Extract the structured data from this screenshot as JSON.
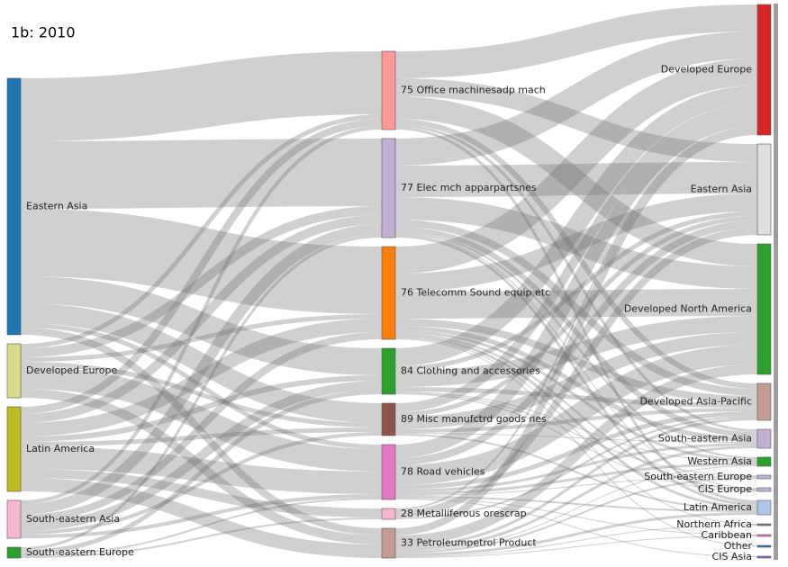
{
  "chart_data": {
    "type": "sankey",
    "title": "1b: 2010",
    "columns": [
      [
        {
          "name": "Eastern Asia",
          "color": "#1f77b4",
          "flows": [
            {
              "to": "75 Office machinesadp mach",
              "value": 70
            },
            {
              "to": "77 Elec mch apparpartsnes",
              "value": 75
            },
            {
              "to": "76 Telecomm Sound equip etc",
              "value": 75
            },
            {
              "to": "84 Clothing and accessories",
              "value": 30
            },
            {
              "to": "89 Misc manufctrd goods nes",
              "value": 22
            },
            {
              "to": "78 Road vehicles",
              "value": 5
            },
            {
              "to": "33 Petroleumpetrol Product",
              "value": 8
            }
          ]
        },
        {
          "name": "Developed Europe",
          "color": "#dbdb8d",
          "flows": [
            {
              "to": "75 Office machinesadp mach",
              "value": 5
            },
            {
              "to": "77 Elec mch apparpartsnes",
              "value": 10
            },
            {
              "to": "76 Telecomm Sound equip etc",
              "value": 5
            },
            {
              "to": "89 Misc manufctrd goods nes",
              "value": 5
            },
            {
              "to": "78 Road vehicles",
              "value": 25
            },
            {
              "to": "33 Petroleumpetrol Product",
              "value": 10
            }
          ]
        },
        {
          "name": "Latin America",
          "color": "#bcbd22",
          "flows": [
            {
              "to": "75 Office machinesadp mach",
              "value": 8
            },
            {
              "to": "77 Elec mch apparpartsnes",
              "value": 10
            },
            {
              "to": "76 Telecomm Sound equip etc",
              "value": 15
            },
            {
              "to": "84 Clothing and accessories",
              "value": 6
            },
            {
              "to": "89 Misc manufctrd goods nes",
              "value": 5
            },
            {
              "to": "78 Road vehicles",
              "value": 25
            },
            {
              "to": "28 Metalliferous orescrap",
              "value": 10
            },
            {
              "to": "33 Petroleumpetrol Product",
              "value": 15
            }
          ]
        },
        {
          "name": "South-eastern Asia",
          "color": "#f7b6d2",
          "flows": [
            {
              "to": "75 Office machinesadp mach",
              "value": 4
            },
            {
              "to": "77 Elec mch apparpartsnes",
              "value": 12
            },
            {
              "to": "76 Telecomm Sound equip etc",
              "value": 8
            },
            {
              "to": "84 Clothing and accessories",
              "value": 10
            },
            {
              "to": "89 Misc manufctrd goods nes",
              "value": 4
            },
            {
              "to": "78 Road vehicles",
              "value": 4
            }
          ]
        },
        {
          "name": "South-eastern Europe",
          "color": "#2ca02c",
          "flows": [
            {
              "to": "77 Elec mch apparpartsnes",
              "value": 3
            },
            {
              "to": "84 Clothing and accessories",
              "value": 5
            },
            {
              "to": "78 Road vehicles",
              "value": 2
            },
            {
              "to": "28 Metalliferous orescrap",
              "value": 2
            }
          ]
        }
      ],
      [
        {
          "name": "75 Office machinesadp mach",
          "color": "#ff9896",
          "flows": [
            {
              "to": "Developed Europe",
              "value": 30
            },
            {
              "to": "Eastern Asia",
              "value": 20
            },
            {
              "to": "Developed North America",
              "value": 25
            },
            {
              "to": "Developed Asia-Pacific",
              "value": 6
            },
            {
              "to": "South-eastern Asia",
              "value": 3
            },
            {
              "to": "Latin America",
              "value": 3
            }
          ]
        },
        {
          "name": "77 Elec mch apparpartsnes",
          "color": "#c5b0d5",
          "flows": [
            {
              "to": "Developed Europe",
              "value": 30
            },
            {
              "to": "Eastern Asia",
              "value": 35
            },
            {
              "to": "Developed North America",
              "value": 25
            },
            {
              "to": "Developed Asia-Pacific",
              "value": 8
            },
            {
              "to": "South-eastern Asia",
              "value": 6
            },
            {
              "to": "Western Asia",
              "value": 2
            },
            {
              "to": "CIS Europe",
              "value": 1
            },
            {
              "to": "Latin America",
              "value": 3
            }
          ]
        },
        {
          "name": "76 Telecomm Sound equip etc",
          "color": "#ff7f0e",
          "flows": [
            {
              "to": "Developed Europe",
              "value": 30
            },
            {
              "to": "Eastern Asia",
              "value": 20
            },
            {
              "to": "Developed North America",
              "value": 30
            },
            {
              "to": "Developed Asia-Pacific",
              "value": 8
            },
            {
              "to": "South-eastern Asia",
              "value": 5
            },
            {
              "to": "Western Asia",
              "value": 3
            },
            {
              "to": "CIS Europe",
              "value": 2
            },
            {
              "to": "Latin America",
              "value": 3
            },
            {
              "to": "Northern Africa",
              "value": 1
            },
            {
              "to": "Other",
              "value": 1
            }
          ]
        },
        {
          "name": "84 Clothing and accessories",
          "color": "#2ca02c",
          "flows": [
            {
              "to": "Developed Europe",
              "value": 20
            },
            {
              "to": "Eastern Asia",
              "value": 5
            },
            {
              "to": "Developed North America",
              "value": 18
            },
            {
              "to": "Developed Asia-Pacific",
              "value": 5
            },
            {
              "to": "Western Asia",
              "value": 1
            },
            {
              "to": "South-eastern Europe",
              "value": 1
            },
            {
              "to": "CIS Europe",
              "value": 1
            }
          ]
        },
        {
          "name": "89 Misc manufctrd goods nes",
          "color": "#8c564b",
          "flows": [
            {
              "to": "Developed Europe",
              "value": 10
            },
            {
              "to": "Eastern Asia",
              "value": 5
            },
            {
              "to": "Developed North America",
              "value": 14
            },
            {
              "to": "Developed Asia-Pacific",
              "value": 4
            },
            {
              "to": "South-eastern Asia",
              "value": 1
            },
            {
              "to": "Latin America",
              "value": 2
            }
          ]
        },
        {
          "name": "78 Road vehicles",
          "color": "#e377c2",
          "flows": [
            {
              "to": "Developed Europe",
              "value": 15
            },
            {
              "to": "Eastern Asia",
              "value": 8
            },
            {
              "to": "Developed North America",
              "value": 22
            },
            {
              "to": "Developed Asia-Pacific",
              "value": 5
            },
            {
              "to": "South-eastern Asia",
              "value": 3
            },
            {
              "to": "Western Asia",
              "value": 3
            },
            {
              "to": "South-eastern Europe",
              "value": 1
            },
            {
              "to": "Latin America",
              "value": 2
            },
            {
              "to": "Caribbean",
              "value": 1
            },
            {
              "to": "CIS Asia",
              "value": 1
            }
          ]
        },
        {
          "name": "28 Metalliferous orescrap",
          "color": "#f7b6d2",
          "flows": [
            {
              "to": "Developed Europe",
              "value": 2
            },
            {
              "to": "Eastern Asia",
              "value": 8
            },
            {
              "to": "Developed Asia-Pacific",
              "value": 2
            }
          ]
        },
        {
          "name": "33 Petroleumpetrol Product",
          "color": "#c49c94",
          "flows": [
            {
              "to": "Developed Europe",
              "value": 8
            },
            {
              "to": "Developed North America",
              "value": 11
            },
            {
              "to": "Developed Asia-Pacific",
              "value": 3
            },
            {
              "to": "South-eastern Asia",
              "value": 3
            },
            {
              "to": "Western Asia",
              "value": 1
            },
            {
              "to": "South-eastern Europe",
              "value": 2
            },
            {
              "to": "Latin America",
              "value": 3
            },
            {
              "to": "Northern Africa",
              "value": 1
            },
            {
              "to": "Caribbean",
              "value": 1
            }
          ]
        }
      ],
      [
        {
          "name": "Developed Europe",
          "color": "#d62728"
        },
        {
          "name": "Eastern Asia",
          "color": "#e0e0e0"
        },
        {
          "name": "Developed North America",
          "color": "#2ca02c"
        },
        {
          "name": "Developed Asia-Pacific",
          "color": "#c49c94"
        },
        {
          "name": "South-eastern Asia",
          "color": "#c5b0d5"
        },
        {
          "name": "Western Asia",
          "color": "#2ca02c"
        },
        {
          "name": "South-eastern Europe",
          "color": "#c5b0d5"
        },
        {
          "name": "CIS Europe",
          "color": "#c5b0d5"
        },
        {
          "name": "Latin America",
          "color": "#aec7e8"
        },
        {
          "name": "Northern Africa",
          "color": "#7f7f7f"
        },
        {
          "name": "Caribbean",
          "color": "#e377c2"
        },
        {
          "name": "Other",
          "color": "#1f77b4"
        },
        {
          "name": "CIS Asia",
          "color": "#9467bd"
        }
      ]
    ]
  }
}
